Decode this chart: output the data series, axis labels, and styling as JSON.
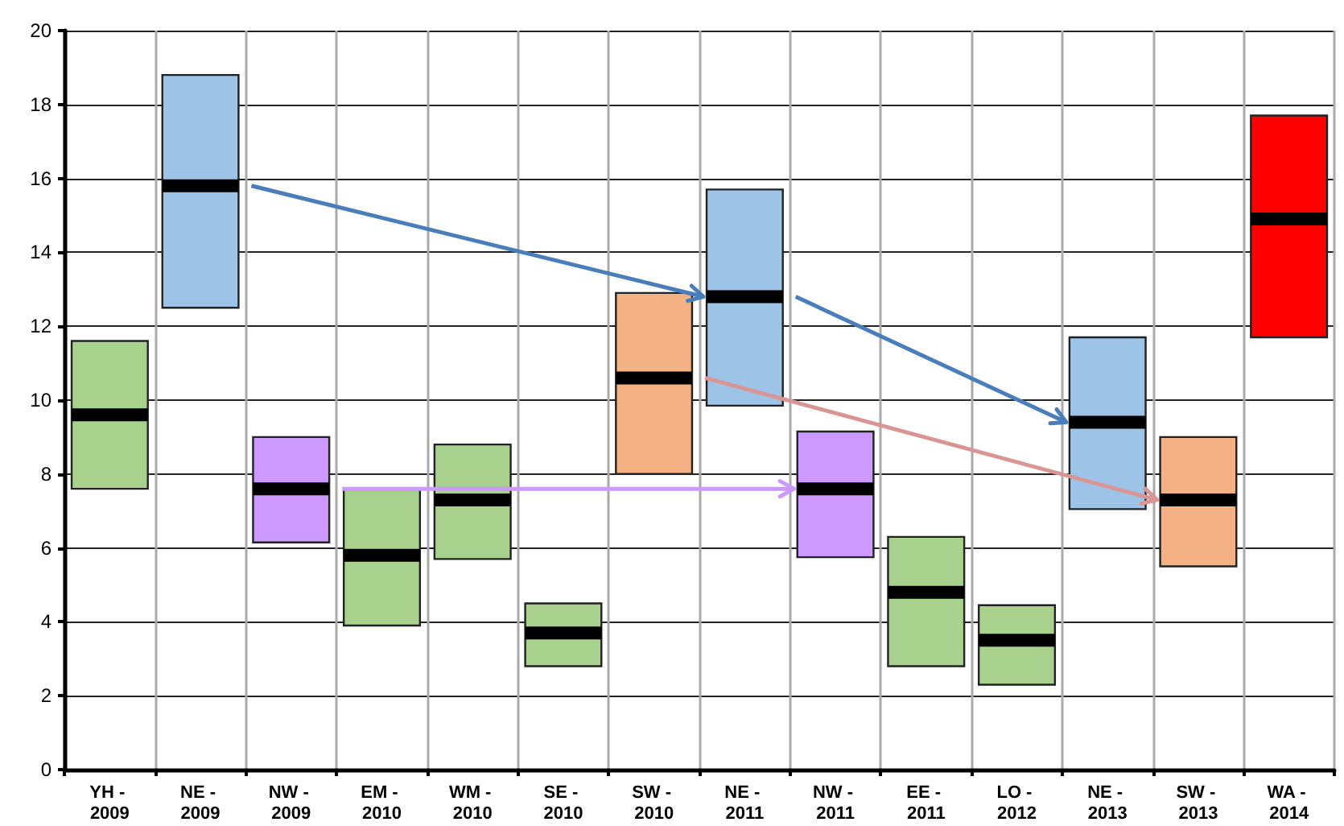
{
  "chart_data": {
    "type": "box",
    "categories": [
      "YH - 2009",
      "NE - 2009",
      "NW - 2009",
      "EM - 2010",
      "WM - 2010",
      "SE - 2010",
      "SW - 2010",
      "NE - 2011",
      "NW - 2011",
      "EE - 2011",
      "LO - 2012",
      "NE - 2013",
      "SW - 2013",
      "WA - 2014"
    ],
    "boxes": [
      {
        "low": 7.6,
        "q1": 7.6,
        "median": 9.6,
        "q3": 11.6,
        "high": 11.6
      },
      {
        "low": 12.5,
        "q1": 12.5,
        "median": 15.8,
        "q3": 18.8,
        "high": 18.8
      },
      {
        "low": 6.15,
        "q1": 6.15,
        "median": 7.6,
        "q3": 9.0,
        "high": 9.0
      },
      {
        "low": 3.9,
        "q1": 3.9,
        "median": 5.8,
        "q3": 7.6,
        "high": 7.6
      },
      {
        "low": 5.7,
        "q1": 5.7,
        "median": 7.3,
        "q3": 8.8,
        "high": 8.8
      },
      {
        "low": 2.8,
        "q1": 2.8,
        "median": 3.7,
        "q3": 4.5,
        "high": 4.5
      },
      {
        "low": 8.0,
        "q1": 8.0,
        "median": 10.6,
        "q3": 12.9,
        "high": 12.9
      },
      {
        "low": 9.85,
        "q1": 9.85,
        "median": 12.8,
        "q3": 15.7,
        "high": 15.7
      },
      {
        "low": 5.75,
        "q1": 5.75,
        "median": 7.6,
        "q3": 9.15,
        "high": 9.15
      },
      {
        "low": 2.8,
        "q1": 2.8,
        "median": 4.8,
        "q3": 6.3,
        "high": 6.3
      },
      {
        "low": 2.3,
        "q1": 2.3,
        "median": 3.5,
        "q3": 4.45,
        "high": 4.45
      },
      {
        "low": 7.05,
        "q1": 7.05,
        "median": 9.4,
        "q3": 11.7,
        "high": 11.7
      },
      {
        "low": 5.5,
        "q1": 5.5,
        "median": 7.3,
        "q3": 9.0,
        "high": 9.0
      },
      {
        "low": 11.7,
        "q1": 11.7,
        "median": 14.9,
        "q3": 17.7,
        "high": 17.7
      }
    ],
    "colors": [
      "#a9d18e",
      "#9dc3e6",
      "#cc99ff",
      "#a9d18e",
      "#a9d18e",
      "#a9d18e",
      "#f4b183",
      "#9dc3e6",
      "#cc99ff",
      "#a9d18e",
      "#a9d18e",
      "#9dc3e6",
      "#f4b183",
      "#ff0000"
    ],
    "ylim": [
      0,
      20
    ],
    "yticks": [
      0,
      2,
      4,
      6,
      8,
      10,
      12,
      14,
      16,
      18,
      20
    ],
    "grid": true
  }
}
